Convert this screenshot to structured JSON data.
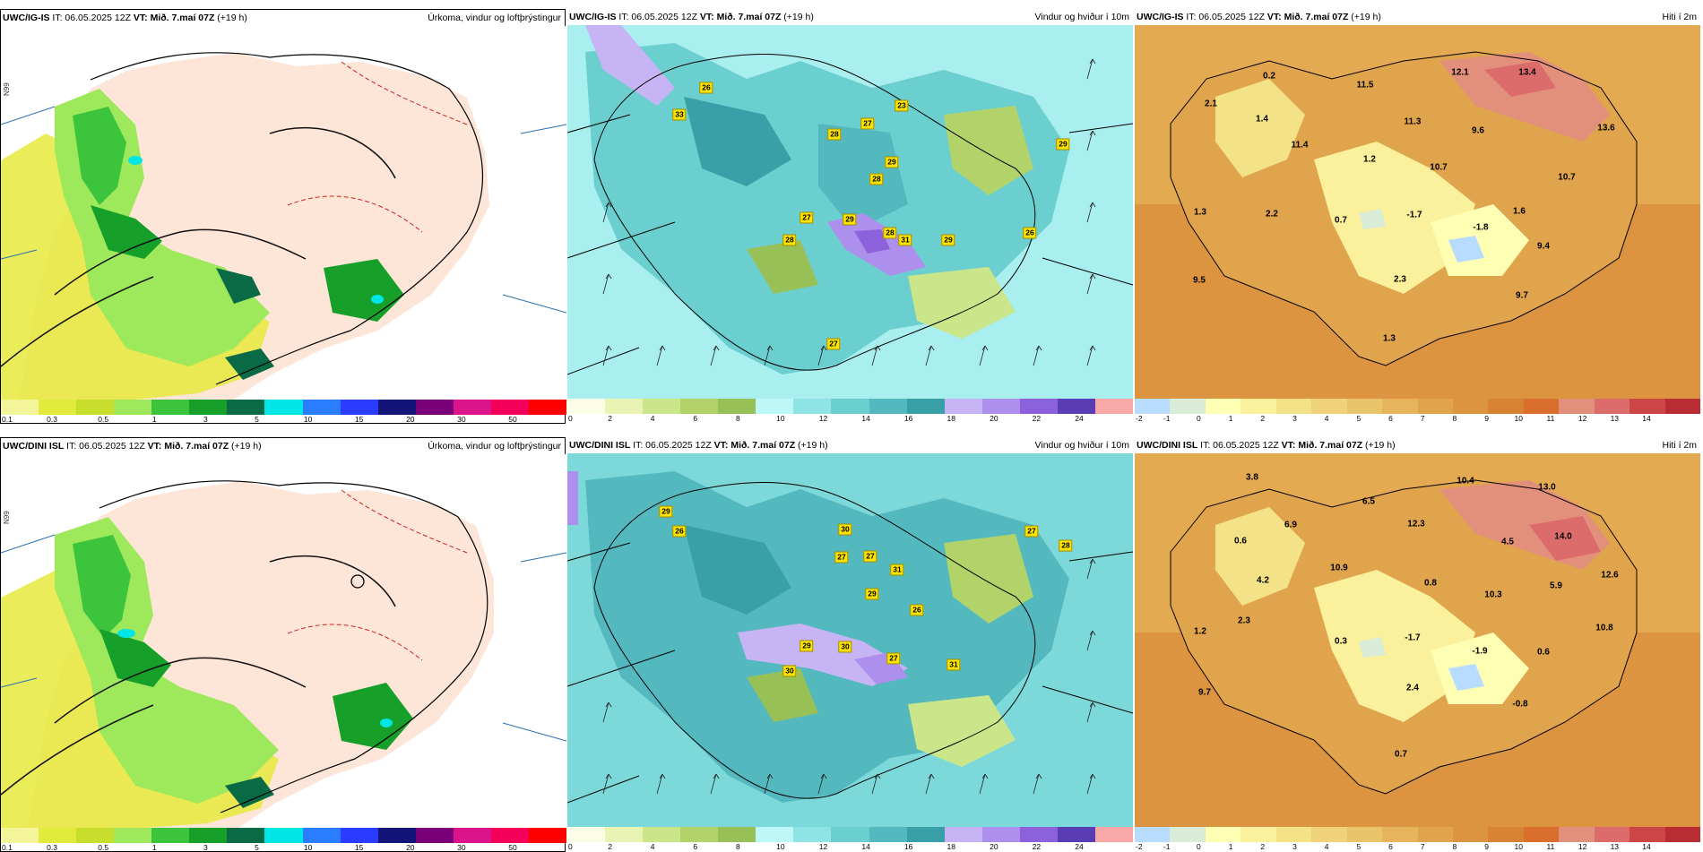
{
  "panels": [
    {
      "id": "ig-precip",
      "model": "UWC/IG-IS",
      "it": "IT: 06.05.2025 12Z",
      "vt_label": "VT:",
      "vt": "Mið. 7.maí 07Z",
      "lead": "(+19 h)",
      "title": "Úrkoma, vindur og loftþrýstingur",
      "lat_label": "N99",
      "legend_colors": [
        "#f4f49a",
        "#e2ea3c",
        "#c8de2c",
        "#9ee85c",
        "#3cc43c",
        "#16a02a",
        "#0a6a46",
        "#00e6e6",
        "#2a7dff",
        "#2a3cff",
        "#121478",
        "#7a007a",
        "#dc148c",
        "#f4005a",
        "#ff0000"
      ],
      "legend_ticks": [
        "0.1",
        "0.3",
        "0.5",
        "1",
        "3",
        "5",
        "10",
        "15",
        "20",
        "30",
        "50"
      ],
      "labels": []
    },
    {
      "id": "ig-wind",
      "model": "UWC/IG-IS",
      "it": "IT: 06.05.2025 12Z",
      "vt_label": "VT:",
      "vt": "Mið. 7.maí 07Z",
      "lead": "(+19 h)",
      "title": "Vindur og hviður í 10m",
      "legend_colors": [
        "#fbfde4",
        "#e8f3b4",
        "#cbe58a",
        "#b1d36a",
        "#97c057",
        "#bdf7f7",
        "#8ee4e4",
        "#6ccfcf",
        "#54b9bf",
        "#3aa0a8",
        "#c7b4f4",
        "#ad90ee",
        "#8d60dc",
        "#5a3cb4",
        "#f9a8a8"
      ],
      "legend_ticks": [
        "0",
        "2",
        "4",
        "6",
        "8",
        "10",
        "12",
        "14",
        "16",
        "18",
        "20",
        "22",
        "24"
      ],
      "gusts": [
        "26",
        "33",
        "27",
        "23",
        "28",
        "29",
        "28",
        "27",
        "28",
        "29",
        "31",
        "29",
        "26",
        "28",
        "27",
        "29"
      ]
    },
    {
      "id": "ig-temp",
      "model": "UWC/IG-IS",
      "it": "IT: 06.05.2025 12Z",
      "vt_label": "VT:",
      "vt": "Mið. 7.maí 07Z",
      "lead": "(+19 h)",
      "title": "Hiti í 2m",
      "legend_colors": [
        "#b8dcff",
        "#d8ecd8",
        "#ffffb4",
        "#fbf09c",
        "#f4e288",
        "#efd27a",
        "#eac46a",
        "#e6b45a",
        "#e0a44c",
        "#dc9440",
        "#d88234",
        "#da6e2c",
        "#e2907c",
        "#dc6c6c",
        "#cc4646",
        "#b82c34"
      ],
      "legend_ticks": [
        "-2",
        "-1",
        "0",
        "1",
        "2",
        "3",
        "4",
        "5",
        "6",
        "7",
        "8",
        "9",
        "10",
        "11",
        "12",
        "13",
        "14"
      ],
      "temps": [
        "0.2",
        "2.1",
        "1.4",
        "11.5",
        "12.1",
        "13.4",
        "11.4",
        "11.3",
        "9.6",
        "13.6",
        "1.2",
        "10.7",
        "10.7",
        "1.3",
        "2.2",
        "0.7",
        "-1.7",
        "1.6",
        "-1.8",
        "9.4",
        "9.5",
        "2.3",
        "9.7",
        "1.3"
      ]
    },
    {
      "id": "dini-precip",
      "model": "UWC/DINI ISL",
      "it": "IT: 06.05.2025 12Z",
      "vt_label": "VT:",
      "vt": "Mið. 7.maí 07Z",
      "lead": "(+19 h)",
      "title": "Úrkoma, vindur og loftþrýstingur",
      "lat_label": "N99",
      "legend_colors": [
        "#f4f49a",
        "#e2ea3c",
        "#c8de2c",
        "#9ee85c",
        "#3cc43c",
        "#16a02a",
        "#0a6a46",
        "#00e6e6",
        "#2a7dff",
        "#2a3cff",
        "#121478",
        "#7a007a",
        "#dc148c",
        "#f4005a",
        "#ff0000"
      ],
      "legend_ticks": [
        "0.1",
        "0.3",
        "0.5",
        "1",
        "3",
        "5",
        "10",
        "15",
        "20",
        "30",
        "50"
      ]
    },
    {
      "id": "dini-wind",
      "model": "UWC/DINI ISL",
      "it": "IT: 06.05.2025 12Z",
      "vt_label": "VT:",
      "vt": "Mið. 7.maí 07Z",
      "lead": "(+19 h)",
      "title": "Vindur og hviður í 10m",
      "legend_colors": [
        "#fbfde4",
        "#e8f3b4",
        "#cbe58a",
        "#b1d36a",
        "#97c057",
        "#bdf7f7",
        "#8ee4e4",
        "#6ccfcf",
        "#54b9bf",
        "#3aa0a8",
        "#c7b4f4",
        "#ad90ee",
        "#8d60dc",
        "#5a3cb4",
        "#f9a8a8"
      ],
      "legend_ticks": [
        "0",
        "2",
        "4",
        "6",
        "8",
        "10",
        "12",
        "14",
        "16",
        "18",
        "20",
        "22",
        "24"
      ],
      "gusts": [
        "29",
        "26",
        "30",
        "27",
        "27",
        "31",
        "29",
        "26",
        "27",
        "28",
        "29",
        "30",
        "30",
        "27",
        "31"
      ]
    },
    {
      "id": "dini-temp",
      "model": "UWC/DINI ISL",
      "it": "IT: 06.05.2025 12Z",
      "vt_label": "VT:",
      "vt": "Mið. 7.maí 07Z",
      "lead": "(+19 h)",
      "title": "Hiti í 2m",
      "legend_colors": [
        "#b8dcff",
        "#d8ecd8",
        "#ffffb4",
        "#fbf09c",
        "#f4e288",
        "#efd27a",
        "#eac46a",
        "#e6b45a",
        "#e0a44c",
        "#dc9440",
        "#d88234",
        "#da6e2c",
        "#e2907c",
        "#dc6c6c",
        "#cc4646",
        "#b82c34"
      ],
      "legend_ticks": [
        "-2",
        "-1",
        "0",
        "1",
        "2",
        "3",
        "4",
        "5",
        "6",
        "7",
        "8",
        "9",
        "10",
        "11",
        "12",
        "13",
        "14"
      ],
      "temps": [
        "3.8",
        "0.6",
        "6.9",
        "6.5",
        "10.4",
        "13.0",
        "12.3",
        "14.0",
        "4.5",
        "12.6",
        "10.9",
        "4.2",
        "0.8",
        "10.3",
        "5.9",
        "2.3",
        "1.2",
        "0.3",
        "-1.7",
        "-1.9",
        "0.6",
        "10.8",
        "2.4",
        "9.7",
        "-0.8",
        "0.7"
      ]
    }
  ]
}
